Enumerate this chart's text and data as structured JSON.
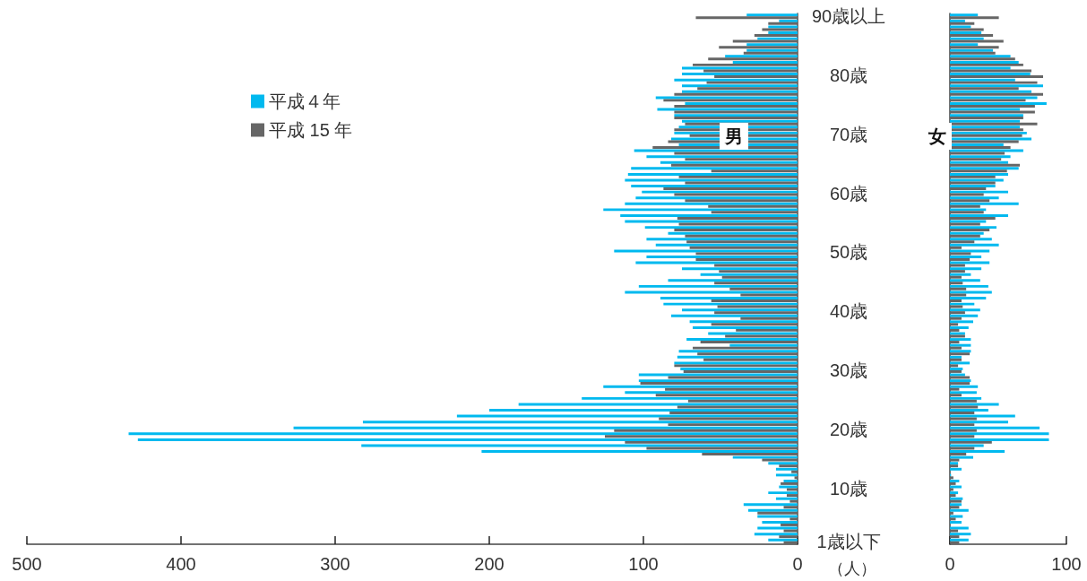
{
  "chart_data": [
    {
      "type": "bar",
      "orientation": "horizontal",
      "title": "男",
      "xlabel": "（人）",
      "categories": [
        "90歳以上",
        null,
        null,
        null,
        null,
        null,
        null,
        null,
        null,
        null,
        "80歳",
        null,
        null,
        null,
        null,
        null,
        null,
        null,
        null,
        null,
        "70歳",
        null,
        null,
        null,
        null,
        null,
        null,
        null,
        null,
        null,
        "60歳",
        null,
        null,
        null,
        null,
        null,
        null,
        null,
        null,
        null,
        "50歳",
        null,
        null,
        null,
        null,
        null,
        null,
        null,
        null,
        null,
        "40歳",
        null,
        null,
        null,
        null,
        null,
        null,
        null,
        null,
        null,
        "30歳",
        null,
        null,
        null,
        null,
        null,
        null,
        null,
        null,
        null,
        "20歳",
        null,
        null,
        null,
        null,
        null,
        null,
        null,
        null,
        null,
        "10歳",
        null,
        null,
        null,
        null,
        null,
        null,
        null,
        null,
        "1歳以下"
      ],
      "series": [
        {
          "name": "平成４年",
          "color": "#00b9ef",
          "values": [
            33,
            12,
            19,
            19,
            26,
            33,
            33,
            47,
            42,
            75,
            75,
            80,
            75,
            75,
            92,
            73,
            91,
            80,
            75,
            77,
            80,
            82,
            77,
            106,
            98,
            89,
            108,
            110,
            112,
            108,
            101,
            105,
            112,
            126,
            115,
            112,
            99,
            84,
            98,
            92,
            119,
            98,
            105,
            75,
            63,
            84,
            103,
            112,
            89,
            87,
            75,
            82,
            70,
            68,
            58,
            72,
            44,
            77,
            78,
            80,
            76,
            103,
            103,
            126,
            112,
            140,
            181,
            200,
            221,
            282,
            327,
            434,
            428,
            283,
            205,
            42,
            19,
            14,
            14,
            9,
            12,
            19,
            14,
            35,
            32,
            26,
            23,
            26,
            28,
            19
          ]
        },
        {
          "name": "平成 15 年",
          "color": "#666666",
          "values": [
            66,
            19,
            23,
            28,
            42,
            51,
            35,
            58,
            68,
            61,
            54,
            59,
            65,
            80,
            87,
            80,
            80,
            80,
            73,
            80,
            70,
            84,
            94,
            80,
            73,
            82,
            56,
            77,
            73,
            87,
            80,
            73,
            58,
            56,
            78,
            77,
            80,
            73,
            72,
            70,
            66,
            66,
            54,
            51,
            49,
            54,
            44,
            37,
            56,
            52,
            54,
            37,
            56,
            40,
            47,
            63,
            68,
            65,
            61,
            80,
            74,
            84,
            102,
            86,
            92,
            71,
            78,
            83,
            90,
            84,
            119,
            125,
            112,
            98,
            62,
            23,
            12,
            4,
            2,
            11,
            7,
            7,
            5,
            9,
            26,
            5,
            11,
            9,
            12,
            9
          ]
        }
      ],
      "xlim": [
        500,
        0
      ],
      "xticks": [
        500,
        400,
        300,
        200,
        100,
        0
      ],
      "grid": false,
      "legend": "top left"
    },
    {
      "type": "bar",
      "orientation": "horizontal",
      "title": "女",
      "categories": [
        null,
        null,
        null,
        null,
        null,
        null,
        null,
        null,
        null,
        null,
        null,
        null,
        null,
        null,
        null,
        null,
        null,
        null,
        null,
        null,
        null,
        null,
        null,
        null,
        null,
        null,
        null,
        null,
        null,
        null,
        null,
        null,
        null,
        null,
        null,
        null,
        null,
        null,
        null,
        null,
        null,
        null,
        null,
        null,
        null,
        null,
        null,
        null,
        null,
        null,
        null,
        null,
        null,
        null,
        null,
        null,
        null,
        null,
        null,
        null,
        null,
        null,
        null,
        null,
        null,
        null,
        null,
        null,
        null,
        null,
        null,
        null,
        null,
        null,
        null,
        null,
        null,
        null,
        null,
        null,
        null,
        null,
        null,
        null,
        null,
        null,
        null,
        null,
        null,
        null
      ],
      "series": [
        {
          "color": "#00b9ef",
          "values": [
            24,
            13,
            18,
            27,
            29,
            24,
            37,
            52,
            59,
            52,
            69,
            56,
            80,
            70,
            75,
            83,
            60,
            63,
            60,
            60,
            66,
            70,
            46,
            63,
            52,
            50,
            59,
            50,
            46,
            39,
            50,
            42,
            59,
            31,
            50,
            31,
            40,
            29,
            36,
            42,
            34,
            27,
            34,
            27,
            18,
            26,
            33,
            36,
            31,
            21,
            26,
            24,
            20,
            16,
            13,
            18,
            18,
            18,
            10,
            17,
            11,
            13,
            18,
            24,
            23,
            27,
            42,
            33,
            56,
            50,
            77,
            85,
            85,
            29,
            47,
            20,
            7,
            10,
            1,
            8,
            10,
            7,
            11,
            10,
            16,
            11,
            10,
            16,
            18,
            16
          ]
        },
        {
          "color": "#666666",
          "values": [
            42,
            21,
            29,
            37,
            46,
            42,
            39,
            56,
            63,
            70,
            80,
            75,
            59,
            80,
            65,
            73,
            73,
            63,
            75,
            63,
            62,
            59,
            52,
            47,
            44,
            60,
            49,
            39,
            39,
            31,
            29,
            34,
            26,
            29,
            39,
            26,
            34,
            26,
            21,
            10,
            18,
            17,
            13,
            13,
            10,
            11,
            14,
            14,
            10,
            11,
            13,
            10,
            7,
            8,
            13,
            8,
            10,
            17,
            10,
            7,
            10,
            17,
            17,
            8,
            10,
            23,
            24,
            21,
            23,
            21,
            23,
            21,
            36,
            21,
            14,
            8,
            7,
            0,
            3,
            5,
            3,
            5,
            10,
            8,
            3,
            5,
            0,
            7,
            8,
            8
          ]
        }
      ],
      "xlim": [
        0,
        100
      ],
      "xticks": [
        0,
        100
      ],
      "grid": false
    }
  ]
}
